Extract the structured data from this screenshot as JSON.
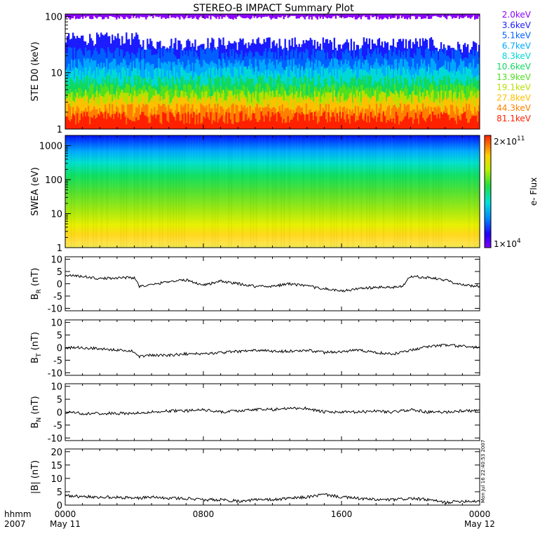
{
  "title": "STEREO-B IMPACT Summary Plot",
  "time_axis": {
    "row1_label": "hhmm",
    "row2_label": "2007",
    "ticks": [
      {
        "hhmm": "0000",
        "date": "May 11"
      },
      {
        "hhmm": "0800",
        "date": ""
      },
      {
        "hhmm": "1600",
        "date": ""
      },
      {
        "hhmm": "0000",
        "date": "May 12"
      }
    ]
  },
  "creation_stamp": "Mon Jul 16 22:40:53 2007",
  "colors": {
    "ste_channels": [
      "#8b00ff",
      "#1a1aff",
      "#0060ff",
      "#00a8ff",
      "#00d8d8",
      "#10d860",
      "#50e020",
      "#b8e000",
      "#ffc000",
      "#ff8000",
      "#ff2000"
    ]
  },
  "chart_data": [
    {
      "type": "line",
      "panel": "STE D0",
      "ylabel": "STE D0 (keV)",
      "yscale": "log",
      "ylim": [
        1,
        110
      ],
      "yticks": [
        "1",
        "10",
        "100"
      ],
      "xlim_hours": [
        0,
        24
      ],
      "series": [
        {
          "name": "2.0keV",
          "baseline": 110
        },
        {
          "name": "3.6keV",
          "baseline": 33
        },
        {
          "name": "5.1keV",
          "baseline": 22
        },
        {
          "name": "6.7keV",
          "baseline": 14
        },
        {
          "name": "8.3keV",
          "baseline": 10
        },
        {
          "name": "10.6keV",
          "baseline": 7
        },
        {
          "name": "13.9keV",
          "baseline": 5
        },
        {
          "name": "19.1keV",
          "baseline": 3.8
        },
        {
          "name": "27.8keV",
          "baseline": 3
        },
        {
          "name": "44.3keV",
          "baseline": 2.2
        },
        {
          "name": "81.1keV",
          "baseline": 1.6
        }
      ]
    },
    {
      "type": "heatmap",
      "panel": "SWEA",
      "ylabel": "SWEA (eV)",
      "yscale": "log",
      "ylim": [
        1,
        2000
      ],
      "yticks": [
        "1",
        "10",
        "100",
        "1000"
      ],
      "colorbar": {
        "min_label": "1×10",
        "min_exp": "4",
        "max_label": "2×10",
        "max_exp": "11",
        "label": "e- Flux"
      },
      "description_levels": {
        "energy_ev": [
          1,
          3,
          10,
          30,
          100,
          300,
          1000,
          2000
        ],
        "relative_flux": [
          0.9,
          0.85,
          0.72,
          0.6,
          0.5,
          0.42,
          0.22,
          0.05
        ]
      }
    },
    {
      "type": "line",
      "panel": "BR",
      "ylabel_main": "B",
      "ylabel_sub": "R",
      "ylabel_unit": "(nT)",
      "ylim": [
        -11,
        11
      ],
      "yticks": [
        -10,
        -5,
        0,
        5,
        10
      ],
      "x_hours": [
        0,
        1,
        2,
        3,
        4,
        4.3,
        5,
        6,
        7,
        8,
        9,
        10,
        11,
        12,
        13,
        14,
        15,
        16,
        17,
        18,
        19,
        19.5,
        20,
        21,
        22,
        23,
        24
      ],
      "values": [
        3.5,
        3,
        2,
        2.5,
        2.5,
        -1,
        -0.5,
        1,
        1.5,
        -0.5,
        1,
        0,
        -1,
        -1,
        0,
        -1,
        -2,
        -3,
        -2,
        -1.5,
        -1.5,
        -1,
        3,
        2.5,
        1.5,
        -0.5,
        -1
      ]
    },
    {
      "type": "line",
      "panel": "BT",
      "ylabel_main": "B",
      "ylabel_sub": "T",
      "ylabel_unit": "(nT)",
      "ylim": [
        -11,
        11
      ],
      "yticks": [
        -10,
        -5,
        0,
        5,
        10
      ],
      "x_hours": [
        0,
        1,
        2,
        3,
        4,
        4.3,
        5,
        6,
        7,
        8,
        9,
        10,
        11,
        12,
        13,
        14,
        15,
        16,
        17,
        18,
        19,
        20,
        21,
        22,
        23,
        24
      ],
      "values": [
        0,
        0,
        -0.5,
        -1,
        -1.5,
        -3.5,
        -3,
        -3,
        -2.5,
        -2.5,
        -2,
        -1.5,
        -1,
        -1.5,
        -1.5,
        -1,
        -2,
        -1.5,
        -1,
        -2,
        -2.5,
        -1,
        0.5,
        1,
        0.5,
        0
      ]
    },
    {
      "type": "line",
      "panel": "BN",
      "ylabel_main": "B",
      "ylabel_sub": "N",
      "ylabel_unit": "(nT)",
      "ylim": [
        -11,
        11
      ],
      "yticks": [
        -10,
        -5,
        0,
        5,
        10
      ],
      "x_hours": [
        0,
        1,
        2,
        3,
        4,
        5,
        6,
        7,
        8,
        9,
        10,
        11,
        12,
        13,
        14,
        15,
        16,
        17,
        18,
        19,
        20,
        21,
        22,
        23,
        24
      ],
      "values": [
        0,
        -0.5,
        -0.5,
        -0.5,
        -0.5,
        0,
        0.5,
        0.5,
        1,
        0,
        0.5,
        1,
        1,
        1.5,
        1.5,
        0,
        0,
        0,
        0.5,
        0,
        1,
        0,
        0,
        0.5,
        0.5
      ]
    },
    {
      "type": "line",
      "panel": "B",
      "ylabel": "|B| (nT)",
      "ylim": [
        0,
        21
      ],
      "yticks": [
        0,
        5,
        10,
        15,
        20
      ],
      "x_hours": [
        0,
        1,
        2,
        3,
        4,
        5,
        6,
        7,
        8,
        9,
        10,
        11,
        12,
        13,
        14,
        15,
        16,
        17,
        18,
        19,
        20,
        21,
        22,
        23,
        24
      ],
      "values": [
        3.5,
        3.2,
        3,
        3,
        2.5,
        3,
        2.5,
        2.5,
        2,
        2,
        1.5,
        2,
        2,
        2.5,
        3,
        4,
        3,
        2.5,
        2,
        2,
        2.5,
        2,
        1,
        1.5,
        1.5
      ]
    }
  ]
}
